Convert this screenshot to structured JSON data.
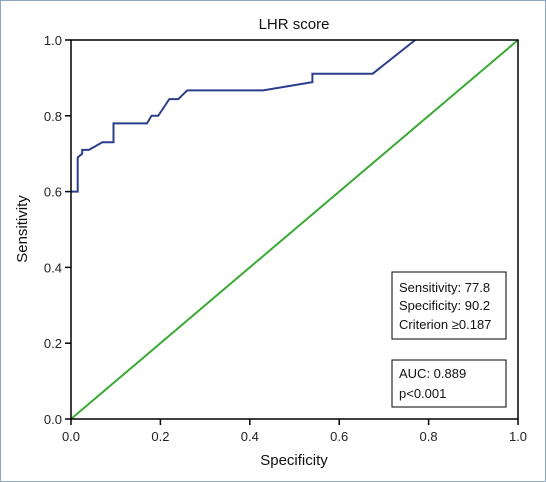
{
  "chart_data": {
    "type": "line",
    "title": "LHR score",
    "xlabel": "Specificity",
    "ylabel": "Sensitivity",
    "xlim": [
      0,
      1
    ],
    "ylim": [
      0,
      1
    ],
    "x_ticks": [
      "0.0",
      "0.2",
      "0.4",
      "0.6",
      "0.8",
      "1.0"
    ],
    "y_ticks": [
      "0.0",
      "0.2",
      "0.4",
      "0.6",
      "0.8",
      "1.0"
    ],
    "grid": false,
    "series": [
      {
        "name": "",
        "color": "#2b3f8e",
        "x": [
          0,
          0.015,
          0.015,
          0.025,
          0.025,
          0.04,
          0.055,
          0.07,
          0.08,
          0.095,
          0.095,
          0.17,
          0.18,
          0.195,
          0.22,
          0.24,
          0.26,
          0.28,
          0.43,
          0.54,
          0.54,
          0.675,
          0.77
        ],
        "y": [
          0.6,
          0.6,
          0.69,
          0.7,
          0.71,
          0.71,
          0.72,
          0.73,
          0.73,
          0.73,
          0.78,
          0.78,
          0.8,
          0.8,
          0.844,
          0.844,
          0.867,
          0.867,
          0.867,
          0.889,
          0.911,
          0.911,
          1.0
        ]
      },
      {
        "name": "",
        "color": "#3aaa35",
        "x": [
          0,
          1
        ],
        "y": [
          0,
          1
        ]
      }
    ],
    "annotations": {
      "criterion_box": [
        "Sensitivity: 77.8",
        "Specificity: 90.2",
        "Criterion ≥0.187"
      ],
      "auc_box": [
        "AUC: 0.889",
        "p<0.001"
      ]
    }
  }
}
